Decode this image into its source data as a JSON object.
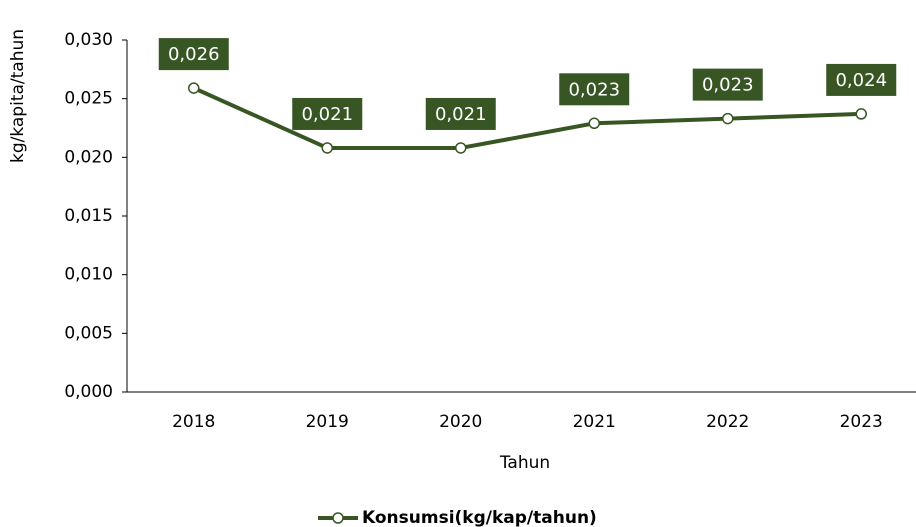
{
  "chart_data": {
    "type": "line",
    "x_label": "Tahun",
    "y_label": "kg/kapita/tahun",
    "categories": [
      "2018",
      "2019",
      "2020",
      "2021",
      "2022",
      "2023"
    ],
    "series": [
      {
        "name": "Konsumsi(kg/kap/tahun)",
        "color": "#375623",
        "values": [
          0.0259,
          0.0208,
          0.0208,
          0.0229,
          0.0233,
          0.0237
        ],
        "value_labels": [
          "0,026",
          "0,021",
          "0,021",
          "0,023",
          "0,023",
          "0,024"
        ]
      }
    ],
    "ylim": [
      0,
      0.03
    ],
    "yticks": [
      {
        "value": 0,
        "label": "0,000"
      },
      {
        "value": 0.005,
        "label": "0,005"
      },
      {
        "value": 0.01,
        "label": "0,010"
      },
      {
        "value": 0.015,
        "label": "0,015"
      },
      {
        "value": 0.02,
        "label": "0,020"
      },
      {
        "value": 0.025,
        "label": "0,025"
      },
      {
        "value": 0.03,
        "label": "0,030"
      }
    ],
    "grid": false,
    "legend": "bottom"
  }
}
